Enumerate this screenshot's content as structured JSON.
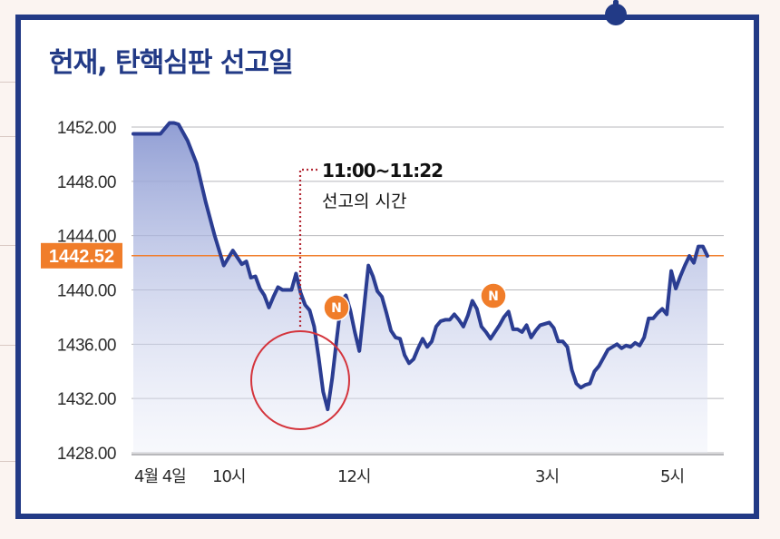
{
  "chart_data": {
    "type": "line",
    "title": "헌재, 탄핵심판 선고일",
    "ylim": [
      1428,
      1452
    ],
    "yticks": [
      "1452.00",
      "1448.00",
      "1444.00",
      "1440.00",
      "1436.00",
      "1432.00",
      "1428.00"
    ],
    "xticks": [
      "4월 4일",
      "10시",
      "12시",
      "3시",
      "5시"
    ],
    "reference_line": {
      "value": 1442.52,
      "label": "1442.52",
      "color": "#f07d2a"
    },
    "annotation": {
      "time": "11:00~11:22",
      "text": "선고의 시간"
    },
    "news_markers": [
      "N",
      "N"
    ],
    "series": [
      {
        "color": "#2b3d92",
        "x": [
          0,
          2,
          4,
          6,
          8,
          9,
          10,
          12,
          14,
          16,
          18,
          20,
          22,
          24,
          25,
          26,
          27,
          28,
          29,
          30,
          31,
          32,
          33,
          34,
          35,
          36,
          37,
          38,
          39,
          40,
          41,
          42,
          43,
          44,
          45,
          46,
          47,
          48,
          49,
          50,
          51,
          52,
          53,
          54,
          55,
          56,
          57,
          58,
          59,
          60,
          61,
          62,
          63,
          64,
          65,
          66,
          67,
          68,
          69,
          70,
          71,
          72,
          73,
          74,
          75,
          76,
          77,
          78,
          79,
          80,
          81,
          82,
          83,
          84,
          85,
          86,
          87,
          88,
          89,
          90,
          91,
          92,
          93,
          94,
          95,
          96,
          97,
          98,
          99,
          100,
          101,
          102,
          103,
          104,
          105,
          106,
          107,
          108,
          109,
          110,
          111,
          112,
          113,
          114,
          115,
          116,
          117,
          118,
          119,
          120,
          121,
          122,
          123,
          124,
          125,
          126,
          127
        ],
        "values": [
          1451.5,
          1451.5,
          1451.5,
          1451.5,
          1452.3,
          1452.3,
          1452.2,
          1451.0,
          1449.3,
          1446.5,
          1444.0,
          1441.8,
          1442.9,
          1441.9,
          1442.1,
          1440.9,
          1441.0,
          1440.1,
          1439.6,
          1438.7,
          1439.5,
          1440.2,
          1440.0,
          1440.0,
          1440.0,
          1441.2,
          1439.8,
          1438.9,
          1438.5,
          1437.3,
          1435.0,
          1432.5,
          1431.2,
          1433.5,
          1436.4,
          1439.2,
          1439.6,
          1438.5,
          1436.9,
          1435.5,
          1438.6,
          1441.8,
          1441.0,
          1439.9,
          1439.5,
          1438.3,
          1437.0,
          1436.5,
          1436.4,
          1435.2,
          1434.6,
          1434.9,
          1435.7,
          1436.4,
          1435.8,
          1436.2,
          1437.3,
          1437.7,
          1437.8,
          1437.8,
          1438.2,
          1437.8,
          1437.3,
          1438.1,
          1439.2,
          1438.6,
          1437.3,
          1436.9,
          1436.4,
          1436.9,
          1437.4,
          1438.0,
          1438.4,
          1437.1,
          1437.1,
          1436.9,
          1437.4,
          1436.5,
          1437.0,
          1437.4,
          1437.5,
          1437.6,
          1437.2,
          1436.2,
          1436.2,
          1435.8,
          1434.1,
          1433.1,
          1432.8,
          1433.0,
          1433.1,
          1434.0,
          1434.4,
          1435.0,
          1435.6,
          1435.8,
          1436.0,
          1435.7,
          1435.9,
          1435.8,
          1436.1,
          1435.9,
          1436.5,
          1437.9,
          1437.9,
          1438.3,
          1438.6,
          1438.2,
          1441.4,
          1440.1,
          1441.0,
          1441.8,
          1442.5,
          1442.0,
          1443.2,
          1443.2,
          1442.5
        ]
      }
    ]
  }
}
